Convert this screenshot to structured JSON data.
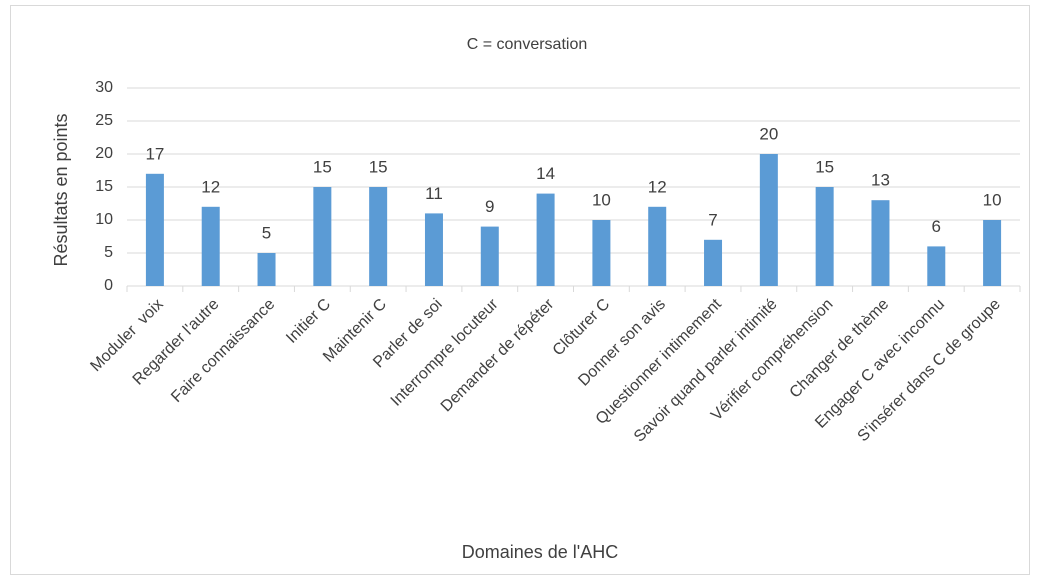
{
  "chart_data": {
    "type": "bar",
    "title": "C = conversation",
    "y_label": "Résultats en points",
    "x_label": "Domaines de l'AHC",
    "categories": [
      "Moduler  voix",
      "Regarder l'autre",
      "Faire connaissance",
      "Initier C",
      "Maintenir C",
      "Parler de soi",
      "Interrompre locuteur",
      "Demander de répéter",
      "Clôturer C",
      "Donner son avis",
      "Questionner intimement",
      "Savoir quand parler intimité",
      "Vérifier compréhension",
      "Changer de thème",
      "Engager C avec inconnu",
      "S'insérer dans C de groupe"
    ],
    "values": [
      17,
      12,
      5,
      15,
      15,
      11,
      9,
      14,
      10,
      12,
      7,
      20,
      15,
      13,
      6,
      10
    ],
    "color": "#5b9bd5",
    "ylim": [
      0,
      30
    ],
    "yticks": [
      0,
      5,
      10,
      15,
      20,
      25,
      30
    ],
    "grid": true
  }
}
